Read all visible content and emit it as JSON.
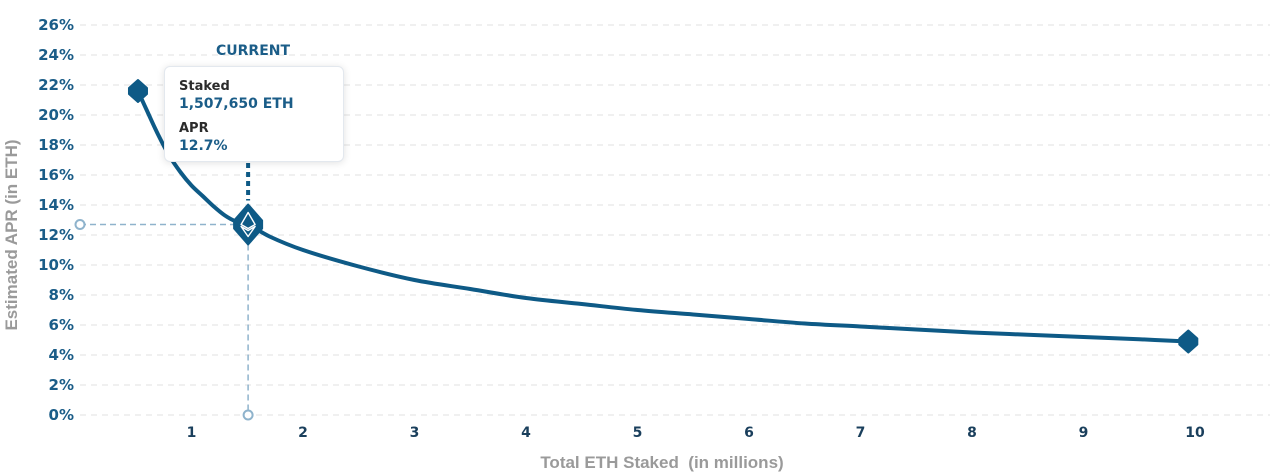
{
  "chart_data": {
    "type": "line",
    "xlabel": "Total ETH Staked  (in millions)",
    "ylabel": "Estimated APR (in ETH)",
    "x_ticks": [
      1,
      2,
      3,
      4,
      5,
      6,
      7,
      8,
      9,
      10
    ],
    "y_ticks": [
      "0%",
      "2%",
      "4%",
      "6%",
      "8%",
      "10%",
      "12%",
      "14%",
      "16%",
      "18%",
      "20%",
      "22%",
      "24%",
      "26%"
    ],
    "xlim": [
      0,
      10.75
    ],
    "ylim": [
      0,
      26
    ],
    "grid": true,
    "series": [
      {
        "points": [
          [
            0.52,
            21.6
          ],
          [
            0.6,
            20.3
          ],
          [
            0.7,
            18.7
          ],
          [
            0.8,
            17.3
          ],
          [
            0.9,
            16.2
          ],
          [
            1.0,
            15.3
          ],
          [
            1.1,
            14.6
          ],
          [
            1.2,
            13.9
          ],
          [
            1.3,
            13.3
          ],
          [
            1.4,
            12.9
          ],
          [
            1.51,
            12.7
          ],
          [
            1.7,
            11.9
          ],
          [
            2.0,
            11.0
          ],
          [
            2.5,
            9.9
          ],
          [
            3.0,
            9.0
          ],
          [
            3.5,
            8.4
          ],
          [
            4.0,
            7.8
          ],
          [
            4.5,
            7.4
          ],
          [
            5.0,
            7.0
          ],
          [
            5.5,
            6.7
          ],
          [
            6.0,
            6.4
          ],
          [
            6.5,
            6.1
          ],
          [
            7.0,
            5.9
          ],
          [
            7.5,
            5.7
          ],
          [
            8.0,
            5.5
          ],
          [
            8.5,
            5.35
          ],
          [
            9.0,
            5.2
          ],
          [
            9.5,
            5.05
          ],
          [
            9.94,
            4.9
          ]
        ]
      }
    ],
    "endpoints": [
      [
        0.52,
        21.6
      ],
      [
        9.94,
        4.9
      ]
    ],
    "current": {
      "x": 1.50765,
      "y": 12.7
    }
  },
  "annotation": {
    "current_label": "CURRENT",
    "staked_label": "Staked",
    "staked_value": "1,507,650 ETH",
    "apr_label": "APR",
    "apr_value": "12.7%"
  },
  "colors": {
    "line": "#0e5a86",
    "marker": "#0e5a86",
    "grid": "#e2e2e2",
    "guide": "#8fb3cc"
  }
}
